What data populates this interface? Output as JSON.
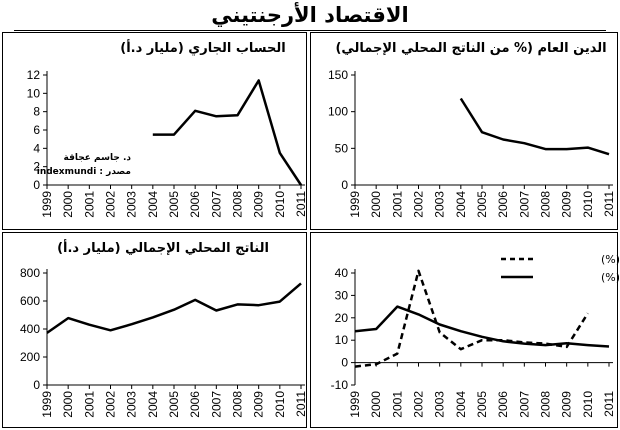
{
  "page": {
    "title": "الاقتصاد الأرجنتيني"
  },
  "chart_data": [
    {
      "id": "current-account",
      "type": "line",
      "title": "الحساب الجاري (مليار د.أ)",
      "x": [
        "1999",
        "2000",
        "2001",
        "2002",
        "2003",
        "2004",
        "2005",
        "2006",
        "2007",
        "2008",
        "2009",
        "2010",
        "2011"
      ],
      "ylim": [
        0,
        12
      ],
      "yticks": [
        0,
        2,
        4,
        6,
        8,
        10,
        12
      ],
      "series": [
        {
          "values": [
            null,
            null,
            null,
            null,
            null,
            5.5,
            5.5,
            8.1,
            7.5,
            7.6,
            11.4,
            3.5,
            0
          ]
        }
      ],
      "annotations": [
        "د. جاسم عجاقة",
        "indexmundi : مصدر"
      ],
      "grid": false
    },
    {
      "id": "public-debt",
      "type": "line",
      "title": "الدين العام (% من الناتج المحلي الإجمالي)",
      "x": [
        "1999",
        "2000",
        "2001",
        "2002",
        "2003",
        "2004",
        "2005",
        "2006",
        "2007",
        "2008",
        "2009",
        "2010",
        "2011"
      ],
      "ylim": [
        0,
        150
      ],
      "yticks": [
        0,
        50,
        100,
        150
      ],
      "series": [
        {
          "values": [
            null,
            null,
            null,
            null,
            null,
            118,
            72,
            62,
            57,
            49,
            49,
            51,
            42
          ]
        }
      ],
      "grid": false
    },
    {
      "id": "gdp",
      "type": "line",
      "title": "الناتج المحلي الإجمالي (مليار د.أ)",
      "x": [
        "1999",
        "2000",
        "2001",
        "2002",
        "2003",
        "2004",
        "2005",
        "2006",
        "2007",
        "2008",
        "2009",
        "2010",
        "2011"
      ],
      "ylim": [
        0,
        800
      ],
      "yticks": [
        0,
        200,
        400,
        600,
        800
      ],
      "series": [
        {
          "values": [
            372,
            478,
            431,
            391,
            434,
            483,
            538,
            608,
            532,
            576,
            570,
            596,
            726
          ]
        }
      ],
      "grid": false
    },
    {
      "id": "inflation-unemployment",
      "type": "line",
      "title": "",
      "x": [
        "1999",
        "2000",
        "2001",
        "2002",
        "2003",
        "2004",
        "2005",
        "2006",
        "2007",
        "2008",
        "2009",
        "2010",
        "2011"
      ],
      "ylim": [
        -10,
        40
      ],
      "yticks": [
        -10,
        0,
        10,
        20,
        30,
        40
      ],
      "series": [
        {
          "name": "التضخم (%)",
          "style": "dashed",
          "values": [
            -1.8,
            -0.7,
            4,
            41,
            13.5,
            6,
            10,
            10,
            9,
            8.5,
            7,
            22,
            null
          ]
        },
        {
          "name": "البطالة (%)",
          "style": "solid",
          "values": [
            14,
            15,
            25,
            21.5,
            17,
            14,
            11.5,
            9.5,
            8.5,
            7.8,
            8.6,
            7.8,
            7.2
          ]
        }
      ],
      "legend": "top-right",
      "grid": false
    }
  ]
}
